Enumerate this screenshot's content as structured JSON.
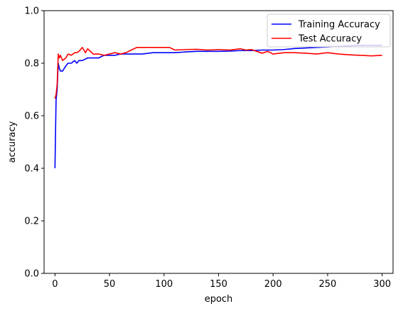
{
  "chart_data": {
    "type": "line",
    "title": "",
    "xlabel": "epoch",
    "ylabel": "accuracy",
    "xlim": [
      -10,
      310
    ],
    "ylim": [
      0.0,
      1.0
    ],
    "xticks": [
      0,
      50,
      100,
      150,
      200,
      250,
      300
    ],
    "yticks": [
      0.0,
      0.2,
      0.4,
      0.6,
      0.8,
      1.0
    ],
    "xtick_labels": [
      "0",
      "50",
      "100",
      "150",
      "200",
      "250",
      "300"
    ],
    "ytick_labels": [
      "0.0",
      "0.2",
      "0.4",
      "0.6",
      "0.8",
      "1.0"
    ],
    "grid": false,
    "legend_position": "top-right",
    "series": [
      {
        "name": "Training Accuracy",
        "color": "#0000ff",
        "x": [
          0,
          1,
          2,
          3,
          4,
          5,
          7,
          10,
          12,
          15,
          18,
          20,
          22,
          25,
          30,
          35,
          40,
          45,
          50,
          55,
          60,
          70,
          80,
          90,
          100,
          110,
          120,
          130,
          140,
          150,
          160,
          170,
          180,
          190,
          200,
          210,
          220,
          230,
          240,
          250,
          260,
          270,
          280,
          290,
          300
        ],
        "y": [
          0.4,
          0.66,
          0.7,
          0.8,
          0.78,
          0.77,
          0.77,
          0.79,
          0.8,
          0.8,
          0.81,
          0.8,
          0.81,
          0.81,
          0.82,
          0.82,
          0.82,
          0.83,
          0.83,
          0.83,
          0.835,
          0.835,
          0.835,
          0.84,
          0.84,
          0.84,
          0.843,
          0.845,
          0.845,
          0.845,
          0.846,
          0.848,
          0.848,
          0.85,
          0.85,
          0.852,
          0.856,
          0.858,
          0.86,
          0.862,
          0.864,
          0.866,
          0.868,
          0.868,
          0.868
        ]
      },
      {
        "name": "Test Accuracy",
        "color": "#ff0000",
        "x": [
          0,
          1,
          2,
          3,
          4,
          5,
          7,
          10,
          12,
          15,
          18,
          20,
          22,
          25,
          28,
          30,
          35,
          40,
          45,
          50,
          55,
          60,
          65,
          70,
          75,
          80,
          90,
          100,
          105,
          110,
          120,
          130,
          140,
          150,
          160,
          170,
          175,
          180,
          190,
          195,
          200,
          210,
          220,
          230,
          240,
          250,
          260,
          270,
          280,
          290,
          300
        ],
        "y": [
          0.665,
          0.68,
          0.72,
          0.835,
          0.82,
          0.83,
          0.81,
          0.82,
          0.835,
          0.83,
          0.84,
          0.84,
          0.845,
          0.86,
          0.84,
          0.855,
          0.835,
          0.835,
          0.83,
          0.835,
          0.84,
          0.835,
          0.84,
          0.85,
          0.86,
          0.86,
          0.86,
          0.86,
          0.86,
          0.85,
          0.852,
          0.853,
          0.85,
          0.852,
          0.85,
          0.855,
          0.85,
          0.852,
          0.838,
          0.845,
          0.835,
          0.84,
          0.84,
          0.838,
          0.835,
          0.84,
          0.835,
          0.832,
          0.83,
          0.828,
          0.83
        ]
      }
    ]
  }
}
